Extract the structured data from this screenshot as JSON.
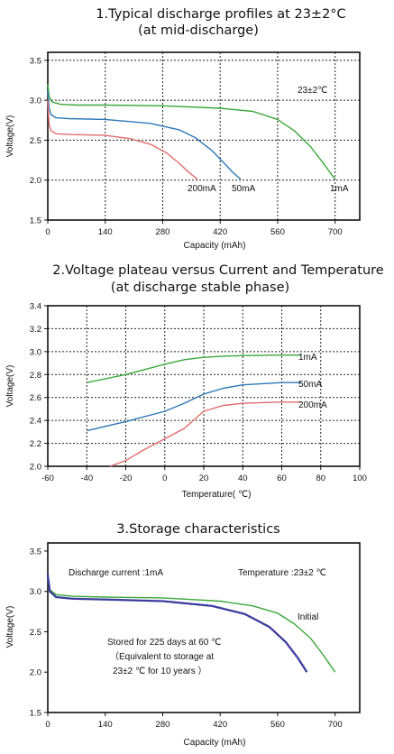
{
  "chart_data": [
    {
      "type": "line",
      "title": "1.Typical discharge profiles at 23±2°C",
      "subtitle": "(at mid-discharge)",
      "xlabel": "Capacity (mAh)",
      "ylabel": "Voltage(V)",
      "xlim": [
        0,
        760
      ],
      "ylim": [
        1.5,
        3.6
      ],
      "xticks": [
        0,
        140,
        280,
        420,
        560,
        700
      ],
      "yticks": [
        1.5,
        2.0,
        2.5,
        3.0,
        3.5
      ],
      "xtick_labels": [
        "0",
        "140",
        "280",
        "420",
        "560",
        "700"
      ],
      "ytick_labels": [
        "1.5",
        "2.0",
        "2.5",
        "3.0",
        "3.5"
      ],
      "grid": true,
      "annotations": [
        {
          "text": "23±2℃"
        }
      ],
      "series": [
        {
          "name": "1mA",
          "color": "#3aa83a",
          "x": [
            0,
            3,
            10,
            30,
            70,
            140,
            280,
            420,
            500,
            560,
            600,
            640,
            670,
            700
          ],
          "y": [
            3.2,
            3.05,
            2.98,
            2.95,
            2.94,
            2.94,
            2.93,
            2.9,
            2.86,
            2.76,
            2.62,
            2.42,
            2.22,
            2.01
          ]
        },
        {
          "name": "50mA",
          "color": "#2e78b7",
          "x": [
            0,
            3,
            8,
            20,
            50,
            140,
            250,
            320,
            360,
            400,
            430,
            450,
            470
          ],
          "y": [
            3.12,
            2.9,
            2.82,
            2.78,
            2.77,
            2.76,
            2.71,
            2.63,
            2.53,
            2.37,
            2.21,
            2.1,
            2.01
          ]
        },
        {
          "name": "200mA",
          "color": "#e06c6c",
          "x": [
            0,
            3,
            8,
            20,
            60,
            140,
            200,
            250,
            290,
            320,
            345,
            365
          ],
          "y": [
            3.0,
            2.7,
            2.62,
            2.58,
            2.57,
            2.56,
            2.52,
            2.45,
            2.34,
            2.21,
            2.09,
            2.01
          ]
        }
      ]
    },
    {
      "type": "line",
      "title": "2.Voltage plateau versus Current and Temperature",
      "subtitle": "(at discharge stable phase)",
      "xlabel": "Temperature( ℃)",
      "ylabel": "Voltage(V)",
      "xlim": [
        -60,
        100
      ],
      "ylim": [
        2.0,
        3.4
      ],
      "xticks": [
        -60,
        -40,
        -20,
        0,
        20,
        40,
        60,
        80,
        100
      ],
      "yticks": [
        2.0,
        2.2,
        2.4,
        2.6,
        2.8,
        3.0,
        3.2,
        3.4
      ],
      "xtick_labels": [
        "-60",
        "-40",
        "-20",
        "0",
        "20",
        "40",
        "60",
        "80",
        "100"
      ],
      "ytick_labels": [
        "2.0",
        "2.2",
        "2.4",
        "2.6",
        "2.8",
        "3.0",
        "3.2",
        "3.4"
      ],
      "grid": true,
      "series": [
        {
          "name": "1mA",
          "color": "#3aa83a",
          "x": [
            -40,
            -20,
            0,
            10,
            20,
            30,
            40,
            60,
            70
          ],
          "y": [
            2.73,
            2.8,
            2.89,
            2.93,
            2.95,
            2.96,
            2.965,
            2.97,
            2.97
          ]
        },
        {
          "name": "50mA",
          "color": "#2e78b7",
          "x": [
            -40,
            -20,
            0,
            10,
            20,
            30,
            40,
            60,
            70
          ],
          "y": [
            2.31,
            2.39,
            2.48,
            2.55,
            2.63,
            2.68,
            2.71,
            2.73,
            2.73
          ]
        },
        {
          "name": "200mA",
          "color": "#e06c6c",
          "x": [
            -28,
            -20,
            -10,
            0,
            10,
            20,
            30,
            40,
            60,
            70
          ],
          "y": [
            2.0,
            2.05,
            2.15,
            2.24,
            2.33,
            2.48,
            2.53,
            2.55,
            2.56,
            2.56
          ]
        }
      ]
    },
    {
      "type": "line",
      "title": "3.Storage characteristics",
      "xlabel": "Capacity (mAh)",
      "ylabel": "Voltage(V)",
      "xlim": [
        0,
        760
      ],
      "ylim": [
        1.5,
        3.6
      ],
      "xticks": [
        0,
        140,
        280,
        420,
        560,
        700
      ],
      "yticks": [
        1.5,
        2.0,
        2.5,
        3.0,
        3.5
      ],
      "xtick_labels": [
        "0",
        "140",
        "280",
        "420",
        "560",
        "700"
      ],
      "ytick_labels": [
        "1.5",
        "2.0",
        "2.5",
        "3.0",
        "3.5"
      ],
      "grid": false,
      "annotations": [
        {
          "text": "Discharge current  :1mA"
        },
        {
          "text": "Temperature  :23±2 ℃"
        },
        {
          "text": "Stored for 225 days at 60    ℃"
        },
        {
          "text": "（Equivalent to storage at"
        },
        {
          "text": "23±2 ℃ for 10 years   ）"
        }
      ],
      "series": [
        {
          "name": "Initial",
          "color": "#3aa83a",
          "style": "solid",
          "x": [
            0,
            5,
            20,
            60,
            140,
            280,
            420,
            500,
            560,
            600,
            640,
            670,
            700
          ],
          "y": [
            3.2,
            3.02,
            2.96,
            2.94,
            2.93,
            2.92,
            2.88,
            2.82,
            2.73,
            2.6,
            2.42,
            2.22,
            2.0
          ]
        },
        {
          "name": "",
          "color": "#3b3b9e",
          "style": "dotted",
          "x": [
            0,
            5,
            20,
            60,
            140,
            280,
            400,
            480,
            540,
            580,
            610,
            630
          ],
          "y": [
            3.2,
            3.0,
            2.93,
            2.91,
            2.9,
            2.88,
            2.82,
            2.72,
            2.56,
            2.37,
            2.17,
            2.01
          ]
        }
      ]
    }
  ]
}
